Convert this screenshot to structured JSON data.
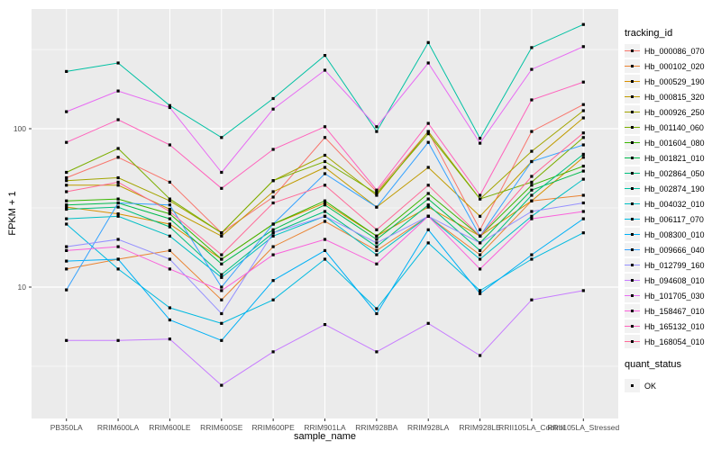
{
  "style": {
    "panel_bg": "#EBEBEB",
    "grid_color": "#FFFFFF",
    "axis_text_color": "#4D4D4D",
    "tick_color": "#333333",
    "point_color": "#000000",
    "legend_key_bg": "#F2F2F2"
  },
  "chart_data": {
    "type": "line",
    "title": "",
    "xlabel": "sample_name",
    "ylabel": "FPKM + 1",
    "y_scale": "log10",
    "ylim": [
      1.48,
      570
    ],
    "y_major_ticks": [
      10,
      100
    ],
    "y_minor_ticks": [
      3.162,
      31.62,
      316.2
    ],
    "grid": true,
    "legend_position": "right",
    "legend_titles": {
      "series": "tracking_id",
      "shape": "quant_status"
    },
    "shape_legend": {
      "label": "OK",
      "marker": "filled-square",
      "color": "#000000"
    },
    "categories": [
      "PB350LA",
      "RRIM600LA",
      "RRIM600LE",
      "RRIM600SE",
      "RRIM600PE",
      "RRIM901LA",
      "RRIM928BA",
      "RRIM928LA",
      "RRIM928LE",
      "RRII105LA_Control",
      "RRII105LA_Stressed"
    ],
    "series": [
      {
        "name": "Hb_000086_070",
        "color": "#F8766D",
        "quant_status": "OK",
        "values": [
          49,
          66,
          46,
          22,
          37,
          88,
          40,
          96,
          23,
          96,
          142
        ]
      },
      {
        "name": "Hb_000102_020",
        "color": "#EA8331",
        "quant_status": "OK",
        "values": [
          13,
          15,
          17,
          8.3,
          18,
          26,
          17,
          28,
          16,
          35,
          38
        ]
      },
      {
        "name": "Hb_000529_190",
        "color": "#D89000",
        "quant_status": "OK",
        "values": [
          32,
          29,
          25,
          15,
          25,
          34,
          21,
          32,
          21,
          35,
          66
        ]
      },
      {
        "name": "Hb_000815_320",
        "color": "#C09B00",
        "quant_status": "OK",
        "values": [
          44,
          44,
          31,
          21,
          40,
          57,
          32,
          57,
          28,
          62,
          117
        ]
      },
      {
        "name": "Hb_000926_250",
        "color": "#A3A500",
        "quant_status": "OK",
        "values": [
          47,
          49,
          35,
          22,
          47,
          68,
          38,
          96,
          36,
          72,
          130
        ]
      },
      {
        "name": "Hb_001140_060",
        "color": "#7CAE00",
        "quant_status": "OK",
        "values": [
          53,
          75,
          36,
          22,
          47,
          62,
          39,
          93,
          36,
          46,
          88
        ]
      },
      {
        "name": "Hb_001604_080",
        "color": "#39B600",
        "quant_status": "OK",
        "values": [
          35,
          36,
          29,
          15,
          25,
          35,
          21,
          39,
          21,
          44,
          58
        ]
      },
      {
        "name": "Hb_001821_010",
        "color": "#00BB4E",
        "quant_status": "OK",
        "values": [
          33,
          34,
          27,
          14,
          23,
          33,
          20,
          36,
          19,
          41,
          54
        ]
      },
      {
        "name": "Hb_002864_050",
        "color": "#00BF7D",
        "quant_status": "OK",
        "values": [
          31,
          32,
          24,
          12,
          22,
          30,
          18,
          33,
          17,
          38,
          69
        ]
      },
      {
        "name": "Hb_002874_190",
        "color": "#00C1A3",
        "quant_status": "OK",
        "values": [
          230,
          260,
          140,
          88,
          155,
          290,
          96,
          350,
          87,
          325,
          455
        ]
      },
      {
        "name": "Hb_004032_010",
        "color": "#00BFC4",
        "quant_status": "OK",
        "values": [
          27,
          28,
          21,
          11.5,
          21,
          28,
          16,
          28,
          15,
          28,
          48
        ]
      },
      {
        "name": "Hb_006117_070",
        "color": "#00BAE0",
        "quant_status": "OK",
        "values": [
          25,
          13,
          7.4,
          5.9,
          8.3,
          15,
          7.3,
          19,
          9.5,
          15,
          22
        ]
      },
      {
        "name": "Hb_008300_010",
        "color": "#00B0F6",
        "quant_status": "OK",
        "values": [
          14.6,
          15,
          6.2,
          4.6,
          11,
          17,
          6.8,
          23,
          9.1,
          16,
          27
        ]
      },
      {
        "name": "Hb_009666_040",
        "color": "#35A2FF",
        "quant_status": "OK",
        "values": [
          9.6,
          34,
          33,
          10,
          25,
          52,
          32,
          82,
          21,
          62,
          79
        ]
      },
      {
        "name": "Hb_012799_160",
        "color": "#9590FF",
        "quant_status": "OK",
        "values": [
          18,
          20,
          15,
          6.8,
          22,
          28,
          19,
          28,
          19,
          30,
          34
        ]
      },
      {
        "name": "Hb_094608_010",
        "color": "#C77CFF",
        "quant_status": "OK",
        "values": [
          4.6,
          4.6,
          4.7,
          2.4,
          3.9,
          5.8,
          3.9,
          5.9,
          3.7,
          8.3,
          9.5
        ]
      },
      {
        "name": "Hb_101705_030",
        "color": "#E76BF3",
        "quant_status": "OK",
        "values": [
          128,
          173,
          136,
          53,
          133,
          234,
          103,
          260,
          81,
          237,
          330
        ]
      },
      {
        "name": "Hb_158467_010",
        "color": "#FA62DB",
        "quant_status": "OK",
        "values": [
          17,
          18,
          13,
          9.5,
          16,
          20,
          14,
          28,
          13,
          27,
          30
        ]
      },
      {
        "name": "Hb_165132_010",
        "color": "#FF62BC",
        "quant_status": "OK",
        "values": [
          82,
          114,
          79,
          42,
          74,
          103,
          41,
          108,
          38,
          152,
          197
        ]
      },
      {
        "name": "Hb_168054_010",
        "color": "#FF6A98",
        "quant_status": "OK",
        "values": [
          40,
          46,
          30,
          16,
          34,
          44,
          23,
          44,
          21,
          50,
          94
        ]
      }
    ]
  }
}
